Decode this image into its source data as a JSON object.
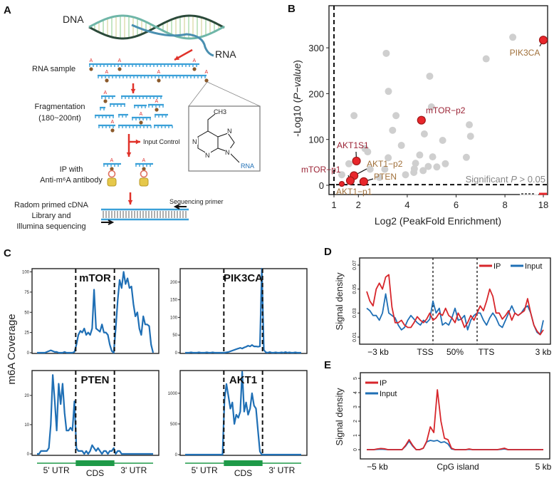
{
  "panel_labels": {
    "a": "A",
    "b": "B",
    "c": "C",
    "d": "D",
    "e": "E"
  },
  "colors": {
    "ip": "#d7262b",
    "input": "#1f6fb5",
    "coverage": "#1f6fb5",
    "gene_track": "#1e9a48",
    "gray_point": "#cfcfcf",
    "highlight_point": "#e8262b",
    "label_red": "#9b2335",
    "label_brown": "#a0703a"
  },
  "panel_a": {
    "dna_label": "DNA",
    "rna_label": "RNA",
    "modification_mark": "A",
    "step_rna_sample": "RNA sample",
    "step_fragmentation": "Fragmentation",
    "step_fragment_size": "(180~200nt)",
    "input_control": "Input Control",
    "step_ip_line1": "IP with",
    "step_ip_line2": "Anti-m⁶A antibody",
    "step_lib_line1": "Radom primed cDNA",
    "step_lib_line2": "Library and",
    "step_lib_line3": "Illumina sequencing",
    "sequencing_primer": "Sequencing primer",
    "molecule": {
      "ch3": "CH3",
      "n": "N",
      "rna": "RNA"
    }
  },
  "chart_data": [
    {
      "id": "B",
      "type": "scatter",
      "xlabel": "Log2 (PeakFold Enrichment)",
      "ylabel": {
        "prefix": "-Log10 (",
        "italic": "P−value",
        "suffix": ")"
      },
      "xticks": [
        1,
        2,
        4,
        6,
        8,
        18
      ],
      "yticks": [
        0,
        100,
        200,
        300
      ],
      "x_axis_broken_between": [
        8,
        18
      ],
      "threshold_x": 1,
      "threshold_y": 1.3,
      "threshold_label": {
        "prefix": "Significant ",
        "italic": "P",
        "suffix": " > 0.05"
      },
      "points": [
        [
          8.32,
          323
        ],
        [
          3.14,
          288
        ],
        [
          7.23,
          276
        ],
        [
          4.92,
          238
        ],
        [
          3.23,
          205
        ],
        [
          4.99,
          171
        ],
        [
          1.82,
          152
        ],
        [
          3.54,
          152
        ],
        [
          6.54,
          132
        ],
        [
          3.4,
          120
        ],
        [
          4.7,
          112
        ],
        [
          6.59,
          107
        ],
        [
          5.45,
          98
        ],
        [
          3.76,
          87
        ],
        [
          2.27,
          80
        ],
        [
          2.38,
          73
        ],
        [
          4.51,
          66
        ],
        [
          5.04,
          62
        ],
        [
          6.42,
          61
        ],
        [
          3.22,
          60
        ],
        [
          4.34,
          48
        ],
        [
          5.56,
          47
        ],
        [
          4.86,
          41
        ],
        [
          5.21,
          40
        ],
        [
          1.61,
          47
        ],
        [
          4.29,
          36
        ],
        [
          4.65,
          32
        ],
        [
          3.08,
          35
        ],
        [
          3.93,
          23
        ],
        [
          4.27,
          28
        ],
        [
          2.48,
          35
        ],
        [
          1.32,
          23
        ],
        [
          2.86,
          17
        ]
      ],
      "highlighted": [
        {
          "label": "PIK3CA",
          "x": 18,
          "y": 317,
          "color": "brown"
        },
        {
          "label": "mTOR−p2",
          "x": 4.58,
          "y": 142,
          "color": "red"
        },
        {
          "label": "AKT1S1",
          "x": 1.92,
          "y": 53,
          "color": "red"
        },
        {
          "label": "AKT1−p2",
          "x": 1.82,
          "y": 21,
          "color": "brown"
        },
        {
          "label": "mTOR−p1",
          "x": 1.67,
          "y": 10,
          "color": "red"
        },
        {
          "label": "PTEN",
          "x": 2.22,
          "y": 8,
          "color": "brown"
        },
        {
          "label": "AKT1−p1",
          "x": 1.32,
          "y": 3,
          "color": "brown"
        }
      ]
    },
    {
      "id": "C",
      "type": "line",
      "ylabel": "m6A Coverage",
      "regions": [
        "5' UTR",
        "CDS",
        "3' UTR"
      ],
      "panels": [
        {
          "gene": "mTOR",
          "yticks": [
            0,
            25,
            50,
            75,
            100
          ],
          "ylim": [
            0,
            104
          ],
          "values": [
            0,
            0,
            0,
            0,
            0,
            1,
            2,
            3,
            2,
            1,
            1,
            0,
            0,
            0,
            1,
            0,
            0,
            0,
            0,
            1,
            10,
            22,
            27,
            25,
            30,
            22,
            25,
            22,
            30,
            78,
            30,
            28,
            26,
            35,
            25,
            25,
            22,
            10,
            2,
            0,
            30,
            65,
            90,
            80,
            100,
            85,
            92,
            80,
            82,
            60,
            45,
            50,
            30,
            22,
            45,
            35,
            35,
            33,
            10,
            0
          ]
        },
        {
          "gene": "PIK3CA",
          "yticks": [
            0,
            50,
            100,
            150,
            200
          ],
          "ylim": [
            0,
            238
          ],
          "values": [
            0,
            0,
            0,
            1,
            0,
            0,
            0,
            1,
            0,
            0,
            0,
            1,
            0,
            0,
            1,
            0,
            0,
            0,
            0,
            0,
            0,
            1,
            2,
            4,
            6,
            8,
            10,
            12,
            14,
            12,
            15,
            17,
            20,
            18,
            22,
            18,
            18,
            17,
            18,
            238,
            8,
            1,
            0,
            2,
            0,
            0,
            1,
            0,
            0,
            1,
            0,
            2,
            0,
            1,
            0,
            0,
            1,
            0,
            0,
            0
          ]
        },
        {
          "gene": "PTEN",
          "yticks": [
            0,
            10,
            20
          ],
          "ylim": [
            0,
            28.5
          ],
          "values": [
            0,
            0,
            1,
            1,
            1,
            1,
            2,
            10,
            27,
            18,
            8,
            24,
            17,
            24,
            14,
            8,
            8,
            9,
            8,
            18,
            2,
            1,
            1,
            1,
            0,
            1,
            0,
            1,
            3,
            2,
            1,
            2,
            1,
            0,
            1,
            1,
            0,
            1,
            1,
            2,
            0,
            1,
            1,
            0,
            0,
            0,
            0,
            0,
            0,
            0,
            0,
            0,
            0,
            0,
            0,
            0,
            0,
            0,
            0,
            0
          ]
        },
        {
          "gene": "AKT1",
          "yticks": [
            0,
            500,
            1000
          ],
          "ylim": [
            0,
            1370
          ],
          "values": [
            0,
            0,
            0,
            0,
            0,
            0,
            0,
            0,
            0,
            0,
            0,
            0,
            0,
            0,
            0,
            0,
            0,
            0,
            0,
            0,
            900,
            1150,
            950,
            750,
            850,
            500,
            650,
            600,
            700,
            1350,
            700,
            850,
            650,
            750,
            1000,
            800,
            750,
            400,
            50,
            0,
            0,
            0,
            0,
            0,
            0,
            0,
            0,
            0,
            0,
            0,
            0,
            0,
            0,
            0,
            0,
            0,
            0,
            0,
            0,
            0
          ]
        }
      ]
    },
    {
      "id": "D",
      "type": "line",
      "ylabel": "Signal density",
      "yticks": [
        0.01,
        0.03,
        0.05,
        0.07
      ],
      "xtick_labels": [
        "−3 kb",
        "TSS",
        "50%",
        "TTS",
        "3 kb"
      ],
      "legend": "top-right",
      "series": [
        {
          "name": "IP",
          "values": [
            0.048,
            0.04,
            0.036,
            0.05,
            0.055,
            0.05,
            0.06,
            0.062,
            0.035,
            0.022,
            0.022,
            0.024,
            0.02,
            0.018,
            0.018,
            0.022,
            0.027,
            0.024,
            0.022,
            0.025,
            0.03,
            0.024,
            0.026,
            0.03,
            0.028,
            0.034,
            0.028,
            0.026,
            0.022,
            0.03,
            0.025,
            0.018,
            0.022,
            0.028,
            0.024,
            0.03,
            0.036,
            0.032,
            0.04,
            0.05,
            0.044,
            0.03,
            0.03,
            0.025,
            0.028,
            0.032,
            0.024,
            0.03,
            0.028,
            0.03,
            0.032,
            0.042,
            0.03,
            0.02,
            0.015,
            0.012,
            0.016
          ]
        },
        {
          "name": "Input",
          "values": [
            0.034,
            0.032,
            0.028,
            0.028,
            0.024,
            0.03,
            0.046,
            0.03,
            0.028,
            0.026,
            0.02,
            0.016,
            0.018,
            0.024,
            0.028,
            0.025,
            0.022,
            0.02,
            0.024,
            0.022,
            0.025,
            0.04,
            0.03,
            0.034,
            0.02,
            0.022,
            0.02,
            0.026,
            0.034,
            0.024,
            0.025,
            0.028,
            0.016,
            0.024,
            0.028,
            0.03,
            0.03,
            0.024,
            0.02,
            0.026,
            0.03,
            0.026,
            0.02,
            0.018,
            0.024,
            0.03,
            0.036,
            0.03,
            0.028,
            0.03,
            0.034,
            0.036,
            0.03,
            0.02,
            0.014,
            0.012,
            0.024
          ]
        }
      ]
    },
    {
      "id": "E",
      "type": "line",
      "ylabel": "Signal density",
      "yticks": [
        0,
        1,
        2,
        3,
        4,
        5
      ],
      "xtick_labels": [
        "−5 kb",
        "CpG island",
        "5 kb"
      ],
      "legend": "top-left",
      "series": [
        {
          "name": "IP",
          "values": [
            0,
            0,
            0,
            0.05,
            0.08,
            0.06,
            0,
            0,
            0,
            0,
            0,
            0.3,
            0.7,
            0.3,
            0,
            0,
            0.1,
            0.6,
            1.6,
            1.2,
            4.2,
            2.0,
            0.8,
            0.7,
            0.1,
            0,
            0,
            0,
            0,
            0.05,
            0,
            0,
            0,
            0,
            0,
            0,
            0,
            0,
            0.05,
            0.1,
            0,
            0,
            0,
            0,
            0,
            0,
            0,
            0,
            0,
            0,
            0
          ]
        },
        {
          "name": "Input",
          "values": [
            0,
            0,
            0,
            0.02,
            0.03,
            0.02,
            0,
            0,
            0,
            0,
            0,
            0.25,
            0.6,
            0.25,
            0,
            0,
            0.1,
            0.55,
            0.65,
            0.6,
            0.65,
            0.5,
            0.55,
            0.4,
            0.05,
            0,
            0,
            0,
            0,
            0.02,
            0,
            0,
            0,
            0,
            0,
            0,
            0,
            0,
            0.02,
            0.05,
            0,
            0,
            0,
            0,
            0,
            0,
            0,
            0,
            0,
            0,
            0
          ]
        }
      ]
    }
  ]
}
